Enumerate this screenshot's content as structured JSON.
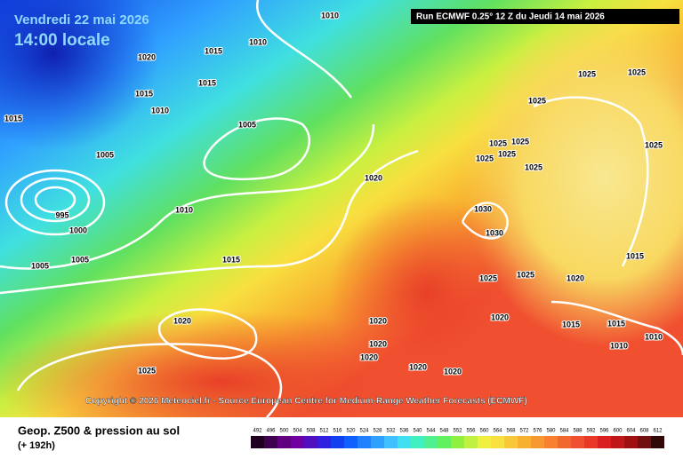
{
  "header": {
    "date": "Vendredi 22 mai 2026",
    "time": "14:00 locale",
    "run": "Run ECMWF 0.25° 12 Z du Jeudi 14 mai 2026"
  },
  "copyright": "Copyright © 2026 Meteociel.fr - Source European Centre for Medium-Range Weather Forecasts (ECMWF)",
  "footer": {
    "title": "Geop. Z500 & pression au sol",
    "lead": "(+ 192h)"
  },
  "isobar_labels": [
    "1010",
    "1010",
    "1020",
    "1015",
    "1015",
    "1015",
    "1010",
    "1015",
    "1005",
    "1005",
    "995",
    "1000",
    "1005",
    "1005",
    "1010",
    "1015",
    "1020",
    "1020",
    "1025",
    "1025",
    "1025",
    "1025",
    "1025",
    "1025",
    "1025",
    "1025",
    "1025",
    "1025",
    "1030",
    "1030",
    "1025",
    "1025",
    "1020",
    "1015",
    "1020",
    "1015",
    "1015",
    "1010",
    "1010",
    "1020",
    "1020",
    "1020",
    "1020",
    "1020"
  ],
  "scale": {
    "values": [
      492,
      496,
      500,
      504,
      508,
      512,
      516,
      520,
      524,
      528,
      532,
      536,
      540,
      544,
      548,
      552,
      556,
      560,
      564,
      568,
      572,
      576,
      580,
      584,
      588,
      592,
      596,
      600,
      604,
      608,
      612
    ],
    "colors": [
      "#200020",
      "#400050",
      "#600080",
      "#7000a0",
      "#5010c0",
      "#3020e0",
      "#1040f0",
      "#1060ff",
      "#2080ff",
      "#30a0ff",
      "#40c0ff",
      "#40e0f0",
      "#40f0c0",
      "#50f090",
      "#60f060",
      "#90f040",
      "#c0f040",
      "#f0f040",
      "#f8e040",
      "#f8c838",
      "#f8b030",
      "#f89830",
      "#f88030",
      "#f06830",
      "#f05030",
      "#e83828",
      "#d82020",
      "#c01818",
      "#a01010",
      "#701010",
      "#300808"
    ]
  }
}
